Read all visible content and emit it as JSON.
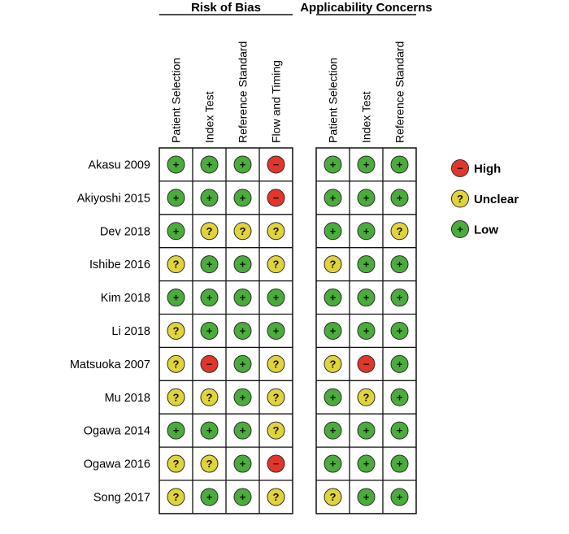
{
  "chart_data": {
    "type": "table",
    "sections": [
      {
        "title": "Risk of Bias",
        "columns": [
          "Patient Selection",
          "Index Test",
          "Reference Standard",
          "Flow and Timing"
        ]
      },
      {
        "title": "Applicability Concerns",
        "columns": [
          "Patient Selection",
          "Index Test",
          "Reference Standard"
        ]
      }
    ],
    "studies": [
      {
        "name": "Akasu 2009",
        "bias": [
          "low",
          "low",
          "low",
          "high"
        ],
        "applicability": [
          "low",
          "low",
          "low"
        ]
      },
      {
        "name": "Akiyoshi 2015",
        "bias": [
          "low",
          "low",
          "low",
          "high"
        ],
        "applicability": [
          "low",
          "low",
          "low"
        ]
      },
      {
        "name": "Dev 2018",
        "bias": [
          "low",
          "unclear",
          "unclear",
          "unclear"
        ],
        "applicability": [
          "low",
          "low",
          "unclear"
        ]
      },
      {
        "name": "Ishibe 2016",
        "bias": [
          "unclear",
          "low",
          "low",
          "unclear"
        ],
        "applicability": [
          "unclear",
          "low",
          "low"
        ]
      },
      {
        "name": "Kim 2018",
        "bias": [
          "low",
          "low",
          "low",
          "low"
        ],
        "applicability": [
          "low",
          "low",
          "low"
        ]
      },
      {
        "name": "Li 2018",
        "bias": [
          "unclear",
          "low",
          "low",
          "low"
        ],
        "applicability": [
          "low",
          "low",
          "low"
        ]
      },
      {
        "name": "Matsuoka 2007",
        "bias": [
          "unclear",
          "high",
          "low",
          "unclear"
        ],
        "applicability": [
          "unclear",
          "high",
          "low"
        ]
      },
      {
        "name": "Mu 2018",
        "bias": [
          "unclear",
          "unclear",
          "low",
          "unclear"
        ],
        "applicability": [
          "low",
          "unclear",
          "low"
        ]
      },
      {
        "name": "Ogawa 2014",
        "bias": [
          "low",
          "low",
          "low",
          "unclear"
        ],
        "applicability": [
          "low",
          "low",
          "low"
        ]
      },
      {
        "name": "Ogawa 2016",
        "bias": [
          "unclear",
          "unclear",
          "low",
          "high"
        ],
        "applicability": [
          "low",
          "low",
          "low"
        ]
      },
      {
        "name": "Song 2017",
        "bias": [
          "unclear",
          "low",
          "low",
          "unclear"
        ],
        "applicability": [
          "unclear",
          "low",
          "low"
        ]
      }
    ],
    "legend": [
      {
        "key": "high",
        "label": "High",
        "symbol": "−"
      },
      {
        "key": "unclear",
        "label": "Unclear",
        "symbol": "?"
      },
      {
        "key": "low",
        "label": "Low",
        "symbol": "+"
      }
    ],
    "colors": {
      "high": "#e2362b",
      "unclear": "#e1d33a",
      "low": "#4aad3b"
    }
  }
}
